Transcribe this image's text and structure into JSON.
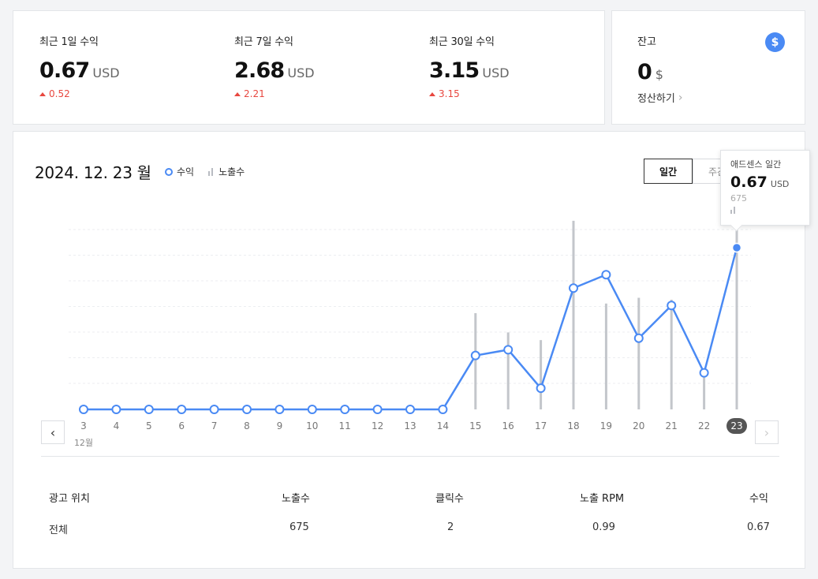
{
  "stats": [
    {
      "label": "최근 1일 수익",
      "value": "0.67",
      "unit": "USD",
      "delta": "0.52"
    },
    {
      "label": "최근 7일 수익",
      "value": "2.68",
      "unit": "USD",
      "delta": "2.21"
    },
    {
      "label": "최근 30일 수익",
      "value": "3.15",
      "unit": "USD",
      "delta": "3.15"
    }
  ],
  "balance": {
    "label": "잔고",
    "value": "0",
    "unit": "$",
    "settle_label": "정산하기",
    "icon": "dollar-icon",
    "icon_text": "$"
  },
  "chart_header": {
    "date": "2024. 12. 23 월",
    "legend_revenue": "수익",
    "legend_impressions": "노출수"
  },
  "period": {
    "daily": "일간",
    "weekly": "주간"
  },
  "tooltip": {
    "title": "애드센스 일간",
    "value": "0.67",
    "unit": "USD",
    "impressions": "675"
  },
  "colors": {
    "line": "#4a8af4",
    "bar": "#c3c6cb",
    "accent_red": "#e8473f"
  },
  "chart_data": {
    "type": "line",
    "x": [
      "3",
      "4",
      "5",
      "6",
      "7",
      "8",
      "9",
      "10",
      "11",
      "12",
      "13",
      "14",
      "15",
      "16",
      "17",
      "18",
      "19",
      "20",
      "21",
      "22",
      "23"
    ],
    "month_label": "12월",
    "selected_x": "23",
    "series": [
      {
        "name": "수익",
        "values": [
          0,
          0,
          0,
          0,
          0,
          0,
          0,
          0,
          0,
          0,
          0,
          0,
          0.28,
          0.31,
          0.11,
          0.63,
          0.7,
          0.37,
          0.54,
          0.19,
          0.84
        ]
      },
      {
        "name": "노출수",
        "values": [
          0,
          0,
          0,
          0,
          0,
          0,
          0,
          0,
          0,
          0,
          0,
          0,
          0.5,
          0.4,
          0.36,
          0.98,
          0.55,
          0.58,
          0.57,
          0.2,
          0.94
        ]
      }
    ],
    "grid": true
  },
  "table": {
    "headers": [
      "광고 위치",
      "노출수",
      "클릭수",
      "노출 RPM",
      "수익"
    ],
    "rows": [
      [
        "전체",
        "675",
        "2",
        "0.99",
        "0.67"
      ]
    ]
  }
}
